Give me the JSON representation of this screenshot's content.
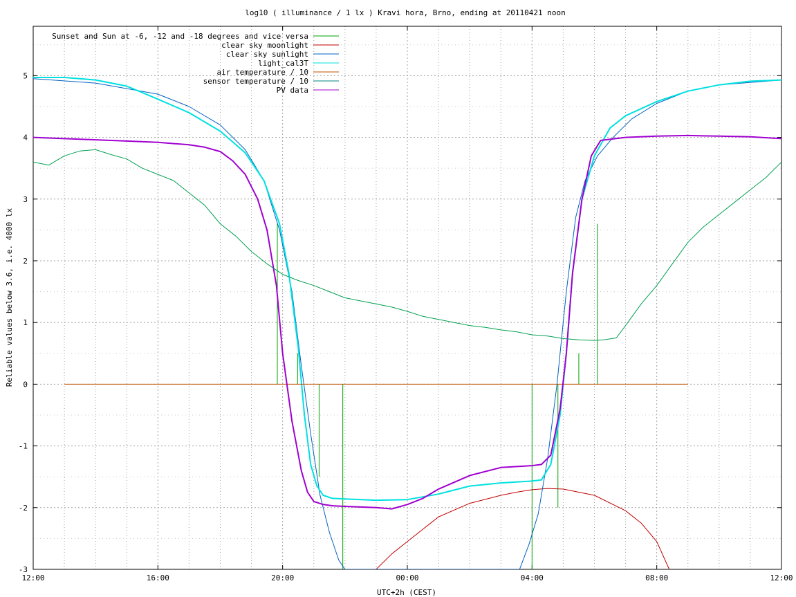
{
  "chart_data": {
    "type": "line",
    "title": "log10 ( illuminance / 1 lx ) Kravi hora, Brno, ending at 20110421 noon",
    "xlabel": "UTC+2h (CEST)",
    "ylabel": "Reliable values below 3.6, i.e. 4000 lx",
    "xlim": [
      0,
      24
    ],
    "ylim": [
      -3,
      5.8
    ],
    "x_unit": "hours since 12:00",
    "x_ticks": [
      0,
      4,
      8,
      12,
      16,
      20,
      24
    ],
    "x_tick_labels": [
      "12:00",
      "16:00",
      "20:00",
      "00:00",
      "04:00",
      "08:00",
      "12:00"
    ],
    "y_ticks": [
      -3,
      -2,
      -1,
      0,
      1,
      2,
      3,
      4,
      5
    ],
    "y_tick_labels": [
      "-3",
      "-2",
      "-1",
      "0",
      "1",
      "2",
      "3",
      "4",
      "5"
    ],
    "grid": true,
    "legend_position": "top-left",
    "series": [
      {
        "name": "Sunset and Sun at -6, -12 and -18 degrees and vice versa",
        "color": "#00a000",
        "kind": "impulses",
        "x": [
          7.83,
          8.48,
          9.17,
          9.93,
          16.0,
          16.83,
          17.5,
          18.1
        ],
        "y": [
          2.6,
          0.5,
          0.0,
          0.0,
          0.0,
          -2.0,
          0.5,
          2.6
        ],
        "baseline_above": [
          0,
          0,
          -1.5,
          -3.0,
          -3.0,
          0,
          0,
          0
        ]
      },
      {
        "name": "clear sky moonlight",
        "color": "#c00000",
        "x": [
          11.0,
          11.5,
          12.0,
          12.5,
          13.0,
          14.0,
          15.0,
          15.5,
          16.0,
          16.5,
          17.0,
          18.0,
          19.0,
          19.5,
          20.0,
          20.4
        ],
        "y": [
          -3.0,
          -2.75,
          -2.55,
          -2.35,
          -2.15,
          -1.93,
          -1.8,
          -1.75,
          -1.71,
          -1.69,
          -1.7,
          -1.8,
          -2.05,
          -2.25,
          -2.55,
          -3.0
        ]
      },
      {
        "name": "clear sky sunlight",
        "color": "#0060c0",
        "x": [
          0,
          2,
          4,
          5,
          6,
          6.8,
          7.4,
          7.9,
          8.3,
          8.6,
          8.9,
          9.2,
          9.5,
          9.8,
          10.0,
          15.6,
          15.9,
          16.2,
          16.5,
          16.8,
          17.1,
          17.4,
          17.7,
          18.1,
          18.6,
          19.2,
          20,
          21,
          22,
          24
        ],
        "y": [
          4.95,
          4.88,
          4.7,
          4.5,
          4.2,
          3.8,
          3.3,
          2.5,
          1.5,
          0.3,
          -0.8,
          -1.8,
          -2.4,
          -2.85,
          -3.0,
          -3.0,
          -2.6,
          -2.1,
          -1.2,
          0.0,
          1.5,
          2.7,
          3.3,
          3.7,
          4.0,
          4.3,
          4.55,
          4.75,
          4.85,
          4.93
        ]
      },
      {
        "name": "light_cal3T",
        "color": "#00e0e0",
        "x": [
          0,
          1,
          2,
          3,
          4,
          5,
          6,
          6.8,
          7.4,
          7.9,
          8.2,
          8.5,
          8.7,
          8.9,
          9.1,
          9.3,
          9.6,
          10,
          11,
          12,
          13,
          14,
          15,
          16,
          16.3,
          16.6,
          16.9,
          17.1,
          17.3,
          17.6,
          18,
          18.5,
          19,
          20,
          21,
          22,
          23,
          24
        ],
        "y": [
          4.97,
          4.97,
          4.93,
          4.83,
          4.62,
          4.4,
          4.1,
          3.75,
          3.3,
          2.6,
          1.8,
          0.6,
          -0.5,
          -1.3,
          -1.65,
          -1.8,
          -1.85,
          -1.86,
          -1.88,
          -1.87,
          -1.78,
          -1.65,
          -1.6,
          -1.57,
          -1.55,
          -1.3,
          -0.5,
          0.5,
          1.8,
          3.0,
          3.7,
          4.15,
          4.35,
          4.58,
          4.75,
          4.85,
          4.91,
          4.93
        ]
      },
      {
        "name": "air temperature / 10",
        "color": "#c05000",
        "x": [
          1.0,
          21.0
        ],
        "y": [
          0.0,
          0.0
        ]
      },
      {
        "name": "sensor temperature / 10",
        "color": "#008080",
        "x": [],
        "y": []
      },
      {
        "name": "PV data",
        "color": "#a000d0",
        "x": [
          0,
          1,
          2,
          3,
          4,
          5,
          5.5,
          6,
          6.4,
          6.8,
          7.2,
          7.5,
          7.8,
          8.0,
          8.3,
          8.6,
          8.8,
          9.0,
          9.3,
          9.6,
          10,
          11,
          11.5,
          12,
          12.5,
          13,
          14,
          15,
          16,
          16.3,
          16.6,
          16.9,
          17.1,
          17.3,
          17.6,
          17.9,
          18.2,
          19,
          20,
          21,
          22,
          23,
          24
        ],
        "y": [
          4.0,
          3.98,
          3.96,
          3.94,
          3.92,
          3.88,
          3.84,
          3.77,
          3.62,
          3.4,
          3.0,
          2.5,
          1.6,
          0.5,
          -0.6,
          -1.4,
          -1.75,
          -1.9,
          -1.95,
          -1.97,
          -1.98,
          -2.0,
          -2.02,
          -1.95,
          -1.85,
          -1.7,
          -1.48,
          -1.35,
          -1.32,
          -1.3,
          -1.15,
          -0.4,
          0.5,
          1.8,
          3.0,
          3.7,
          3.95,
          4.0,
          4.02,
          4.03,
          4.02,
          4.01,
          3.98
        ]
      },
      {
        "name": "air temperature (green)",
        "color": "#00a050",
        "x": [
          0,
          0.5,
          1,
          1.5,
          2,
          2.5,
          3,
          3.5,
          4,
          4.5,
          5,
          5.5,
          6,
          6.5,
          7,
          7.5,
          8,
          8.5,
          9,
          9.5,
          10,
          10.5,
          11,
          11.5,
          12,
          12.5,
          13,
          13.5,
          14,
          14.5,
          15,
          15.5,
          16,
          16.5,
          17,
          17.5,
          18,
          18.3,
          18.7,
          19,
          19.5,
          20,
          20.5,
          21,
          21.5,
          22,
          22.5,
          23,
          23.5,
          24
        ],
        "y": [
          3.6,
          3.55,
          3.7,
          3.78,
          3.8,
          3.72,
          3.65,
          3.5,
          3.4,
          3.3,
          3.1,
          2.9,
          2.6,
          2.4,
          2.15,
          1.95,
          1.78,
          1.68,
          1.6,
          1.5,
          1.4,
          1.35,
          1.3,
          1.25,
          1.18,
          1.1,
          1.05,
          1.0,
          0.95,
          0.92,
          0.88,
          0.85,
          0.8,
          0.78,
          0.74,
          0.72,
          0.71,
          0.72,
          0.75,
          0.95,
          1.3,
          1.6,
          1.95,
          2.3,
          2.55,
          2.75,
          2.95,
          3.15,
          3.35,
          3.6
        ]
      }
    ],
    "legend_series_count": 7
  }
}
